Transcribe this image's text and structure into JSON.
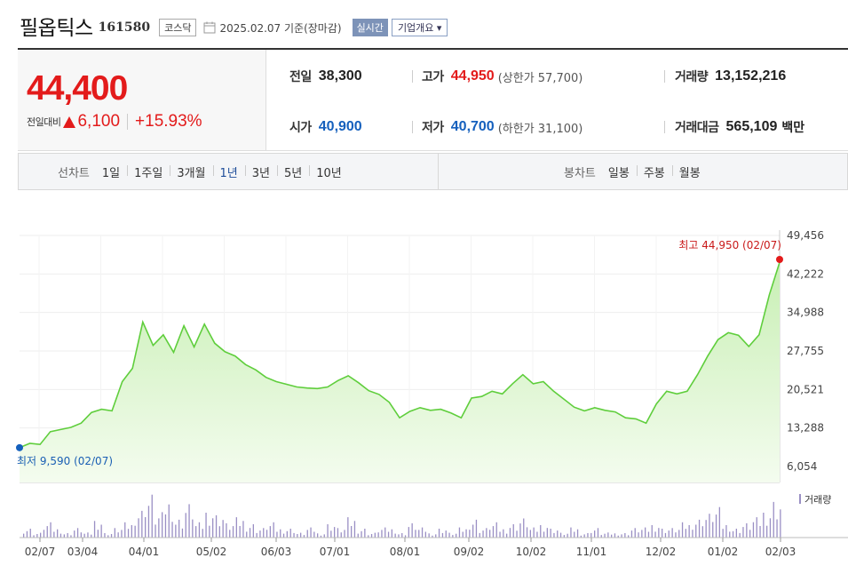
{
  "header": {
    "name": "필옵틱스",
    "code": "161580",
    "market": "코스닥",
    "date_text": "2025.02.07 기준(장마감)",
    "realtime_label": "실시간",
    "overview_label": "기업개요 ▾"
  },
  "price": {
    "current": "44,400",
    "change_label": "전일대비",
    "change": "6,100",
    "change_pct": "+15.93%"
  },
  "info": {
    "prev_close": {
      "label": "전일",
      "value": "38,300"
    },
    "high": {
      "label": "고가",
      "value": "44,950",
      "sub": "(상한가 57,700)"
    },
    "volume": {
      "label": "거래량",
      "value": "13,152,216"
    },
    "open": {
      "label": "시가",
      "value": "40,900"
    },
    "low": {
      "label": "저가",
      "value": "40,700",
      "sub": "(하한가 31,100)"
    },
    "amount": {
      "label": "거래대금",
      "value": "565,109",
      "unit": "백만"
    }
  },
  "tabs": {
    "line_title": "선차트",
    "line_tabs": [
      "1일",
      "1주일",
      "3개월",
      "1년",
      "3년",
      "5년",
      "10년"
    ],
    "active_index": 3,
    "candle_title": "봉차트",
    "candle_tabs": [
      "일봉",
      "주봉",
      "월봉"
    ]
  },
  "chart_data": {
    "type": "area",
    "y_ticks": [
      "49,456",
      "42,222",
      "34,988",
      "27,755",
      "20,521",
      "13,288",
      "6,054"
    ],
    "ylim": [
      6054,
      49456
    ],
    "x_ticks": [
      "02/07",
      "03/04",
      "04/01",
      "05/02",
      "06/03",
      "07/01",
      "08/01",
      "09/02",
      "10/02",
      "11/01",
      "12/02",
      "01/02",
      "02/03"
    ],
    "max_label": "최고 44,950 (02/07)",
    "min_label": "최저 9,590 (02/07)",
    "volume_legend": "거래량",
    "colors": {
      "line": "#5fce3c",
      "fill_top": "#c8efb4",
      "fill_bottom": "#f4fcef",
      "max_dot": "#e31b1b",
      "min_dot": "#1560bd",
      "volume": "#9a8fc4"
    },
    "x": [
      "02/07",
      "02/12",
      "02/17",
      "02/22",
      "02/27",
      "03/04",
      "03/09",
      "03/14",
      "03/19",
      "03/24",
      "03/29",
      "04/01",
      "04/04",
      "04/09",
      "04/14",
      "04/19",
      "04/24",
      "04/29",
      "05/02",
      "05/07",
      "05/12",
      "05/17",
      "05/22",
      "05/27",
      "06/03",
      "06/08",
      "06/13",
      "06/18",
      "06/23",
      "06/28",
      "07/01",
      "07/06",
      "07/11",
      "07/16",
      "07/21",
      "07/26",
      "08/01",
      "08/06",
      "08/11",
      "08/16",
      "08/21",
      "08/26",
      "09/02",
      "09/07",
      "09/12",
      "09/17",
      "09/22",
      "09/27",
      "10/02",
      "10/07",
      "10/12",
      "10/17",
      "10/22",
      "10/27",
      "11/01",
      "11/06",
      "11/11",
      "11/16",
      "11/21",
      "11/26",
      "12/02",
      "12/07",
      "12/12",
      "12/17",
      "12/22",
      "12/27",
      "01/02",
      "01/07",
      "01/12",
      "01/17",
      "01/22",
      "01/27",
      "02/03",
      "02/05",
      "02/07"
    ],
    "values": [
      9590,
      10400,
      10200,
      12600,
      13000,
      13400,
      14200,
      16200,
      16800,
      16500,
      22000,
      24500,
      33200,
      28800,
      30800,
      27500,
      32500,
      28500,
      32800,
      29200,
      27600,
      26800,
      25200,
      24200,
      22800,
      22000,
      21500,
      21000,
      20800,
      20700,
      21000,
      22200,
      23100,
      21800,
      20300,
      19600,
      18100,
      15200,
      16400,
      17100,
      16600,
      16800,
      16100,
      15200,
      18900,
      19200,
      20200,
      19700,
      21600,
      23300,
      21600,
      22000,
      20200,
      18700,
      17200,
      16500,
      17100,
      16600,
      16300,
      15200,
      15000,
      14200,
      17800,
      20200,
      19700,
      20200,
      23300,
      26800,
      29900,
      31200,
      30700,
      28600,
      30800,
      38300,
      44400
    ],
    "volume": [
      2,
      1,
      3,
      2,
      1,
      2,
      1,
      4,
      1,
      2,
      3,
      6,
      9,
      5,
      8,
      4,
      7,
      3,
      6,
      5,
      3,
      4,
      3,
      2,
      3,
      2,
      2,
      1,
      2,
      1,
      3,
      2,
      4,
      2,
      1,
      2,
      2,
      1,
      3,
      2,
      1,
      2,
      1,
      2,
      4,
      2,
      3,
      2,
      3,
      4,
      2,
      3,
      2,
      1,
      2,
      1,
      2,
      1,
      1,
      1,
      2,
      2,
      3,
      2,
      2,
      3,
      4,
      5,
      6,
      3,
      2,
      3,
      4,
      6,
      8
    ]
  }
}
